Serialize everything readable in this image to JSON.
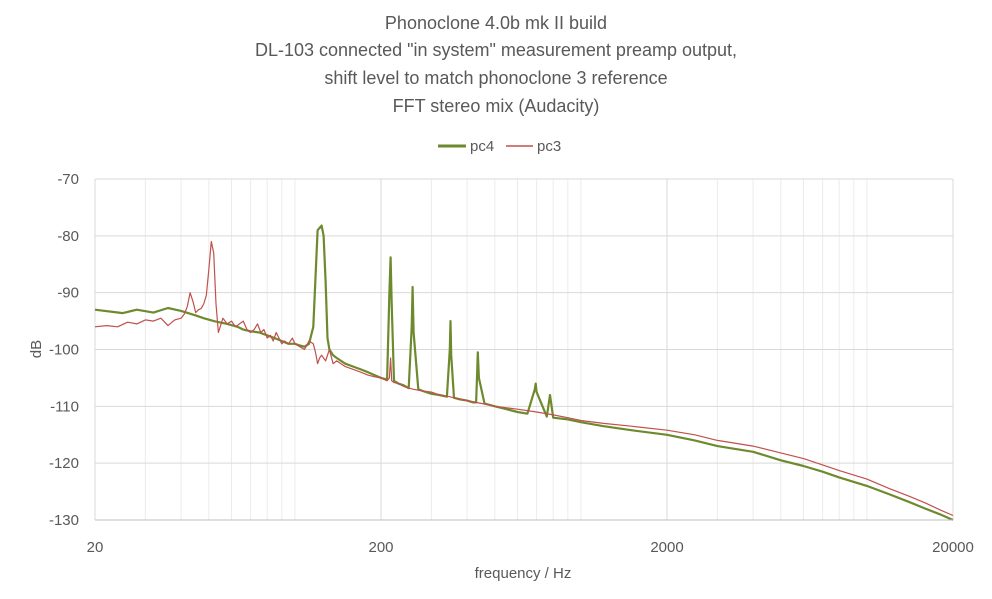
{
  "chart_data": {
    "type": "line",
    "title_lines": [
      "Phonoclone 4.0b mk II build",
      "DL-103 connected \"in system\" measurement preamp output,",
      "shift level to match phonoclone 3 reference",
      "FFT stereo mix (Audacity)"
    ],
    "xlabel": "frequency / Hz",
    "ylabel": "dB",
    "x_scale": "log",
    "xlim": [
      20,
      20000
    ],
    "ylim": [
      -130,
      -70
    ],
    "x_ticks": [
      20,
      200,
      2000,
      20000
    ],
    "x_tick_labels": [
      "20",
      "200",
      "2000",
      "20000"
    ],
    "y_ticks": [
      -70,
      -80,
      -90,
      -100,
      -110,
      -120,
      -130
    ],
    "y_tick_labels": [
      "-70",
      "-80",
      "-90",
      "-100",
      "-110",
      "-120",
      "-130"
    ],
    "grid": "major and minor (log)",
    "legend_position": "top-center",
    "series": [
      {
        "name": "pc4",
        "color": "#6e8a2e",
        "x": [
          20,
          25,
          28,
          32,
          36,
          40,
          45,
          48,
          52,
          58,
          63,
          66,
          70,
          75,
          80,
          85,
          90,
          95,
          100,
          104,
          108,
          112,
          116,
          120,
          124,
          126,
          128,
          130,
          132,
          136,
          140,
          150,
          160,
          170,
          180,
          190,
          200,
          210,
          214,
          216,
          218,
          222,
          230,
          240,
          250,
          256,
          258,
          260,
          270,
          280,
          300,
          320,
          340,
          348,
          350,
          352,
          360,
          380,
          400,
          420,
          430,
          434,
          436,
          440,
          460,
          500,
          550,
          600,
          650,
          690,
          695,
          700,
          760,
          780,
          800,
          900,
          1000,
          1200,
          1500,
          2000,
          2500,
          3000,
          4000,
          5000,
          6000,
          7000,
          8000,
          10000,
          12000,
          14000,
          16000,
          18000,
          20000
        ],
        "y": [
          -93,
          -93.6,
          -93.0,
          -93.5,
          -92.7,
          -93.2,
          -94.0,
          -94.5,
          -95.0,
          -95.5,
          -96.0,
          -96.5,
          -96.8,
          -97.0,
          -97.5,
          -98.0,
          -98.5,
          -99.0,
          -99.0,
          -99.3,
          -99.5,
          -99.0,
          -96.0,
          -79.0,
          -78.2,
          -80.0,
          -88.0,
          -98.0,
          -100.0,
          -101.0,
          -101.5,
          -102.5,
          -103.0,
          -103.5,
          -104.0,
          -104.5,
          -105.0,
          -105.3,
          -90.0,
          -83.8,
          -92.0,
          -105.5,
          -106.0,
          -106.3,
          -106.8,
          -96.0,
          -89.0,
          -97.0,
          -107.0,
          -107.3,
          -107.8,
          -108.0,
          -108.3,
          -100.0,
          -95.0,
          -101.0,
          -108.5,
          -108.8,
          -109.0,
          -109.3,
          -109.3,
          -104.0,
          -100.5,
          -105.0,
          -109.5,
          -110.0,
          -110.5,
          -111.0,
          -111.3,
          -107.0,
          -106.0,
          -107.5,
          -111.8,
          -108.0,
          -112.0,
          -112.3,
          -112.8,
          -113.5,
          -114.2,
          -115.0,
          -116.0,
          -117.0,
          -118.0,
          -119.5,
          -120.5,
          -121.5,
          -122.5,
          -124.0,
          -125.5,
          -126.8,
          -128.0,
          -129.0,
          -130.0
        ]
      },
      {
        "name": "pc3",
        "color": "#c0504d",
        "x": [
          20,
          22,
          24,
          26,
          28,
          30,
          32,
          34,
          36,
          38,
          40,
          41,
          42,
          43,
          44,
          45,
          46,
          47,
          48,
          49,
          50,
          51,
          52,
          53,
          54,
          56,
          58,
          60,
          62,
          64,
          66,
          68,
          70,
          72,
          74,
          76,
          78,
          80,
          82,
          84,
          86,
          88,
          90,
          92,
          95,
          98,
          100,
          104,
          108,
          112,
          116,
          118,
          120,
          122,
          124,
          128,
          132,
          136,
          140,
          150,
          160,
          170,
          180,
          190,
          200,
          210,
          214,
          216,
          218,
          222,
          230,
          240,
          250,
          260,
          280,
          300,
          320,
          340,
          360,
          380,
          400,
          450,
          500,
          600,
          700,
          800,
          900,
          1000,
          1200,
          1500,
          2000,
          2500,
          3000,
          4000,
          5000,
          6000,
          7000,
          8000,
          10000,
          12000,
          14000,
          16000,
          18000,
          20000
        ],
        "y": [
          -96.0,
          -95.8,
          -96.0,
          -95.2,
          -95.5,
          -94.8,
          -95.0,
          -94.5,
          -95.8,
          -94.8,
          -94.5,
          -93.8,
          -92.5,
          -90.0,
          -91.5,
          -93.5,
          -93.0,
          -92.8,
          -92.0,
          -90.5,
          -86.0,
          -81.0,
          -83.0,
          -92.0,
          -97.0,
          -94.5,
          -95.5,
          -95.0,
          -96.0,
          -95.5,
          -95.0,
          -96.5,
          -97.0,
          -96.5,
          -95.5,
          -97.0,
          -96.5,
          -98.0,
          -97.5,
          -98.5,
          -97.0,
          -98.0,
          -99.0,
          -98.5,
          -99.0,
          -98.0,
          -99.0,
          -99.5,
          -100.0,
          -98.5,
          -99.0,
          -100.5,
          -102.5,
          -101.5,
          -101.0,
          -102.0,
          -100.0,
          -102.5,
          -102.0,
          -103.0,
          -103.5,
          -104.0,
          -104.5,
          -104.8,
          -105.0,
          -105.5,
          -105.0,
          -101.5,
          -105.5,
          -105.8,
          -106.0,
          -106.5,
          -106.8,
          -107.0,
          -107.3,
          -107.5,
          -108.0,
          -108.2,
          -108.5,
          -108.8,
          -109.0,
          -109.5,
          -110.0,
          -110.5,
          -111.0,
          -111.5,
          -112.0,
          -112.5,
          -113.0,
          -113.5,
          -114.2,
          -115.0,
          -116.0,
          -117.0,
          -118.2,
          -119.2,
          -120.3,
          -121.3,
          -122.8,
          -124.5,
          -125.8,
          -127.0,
          -128.2,
          -129.2
        ]
      }
    ]
  }
}
